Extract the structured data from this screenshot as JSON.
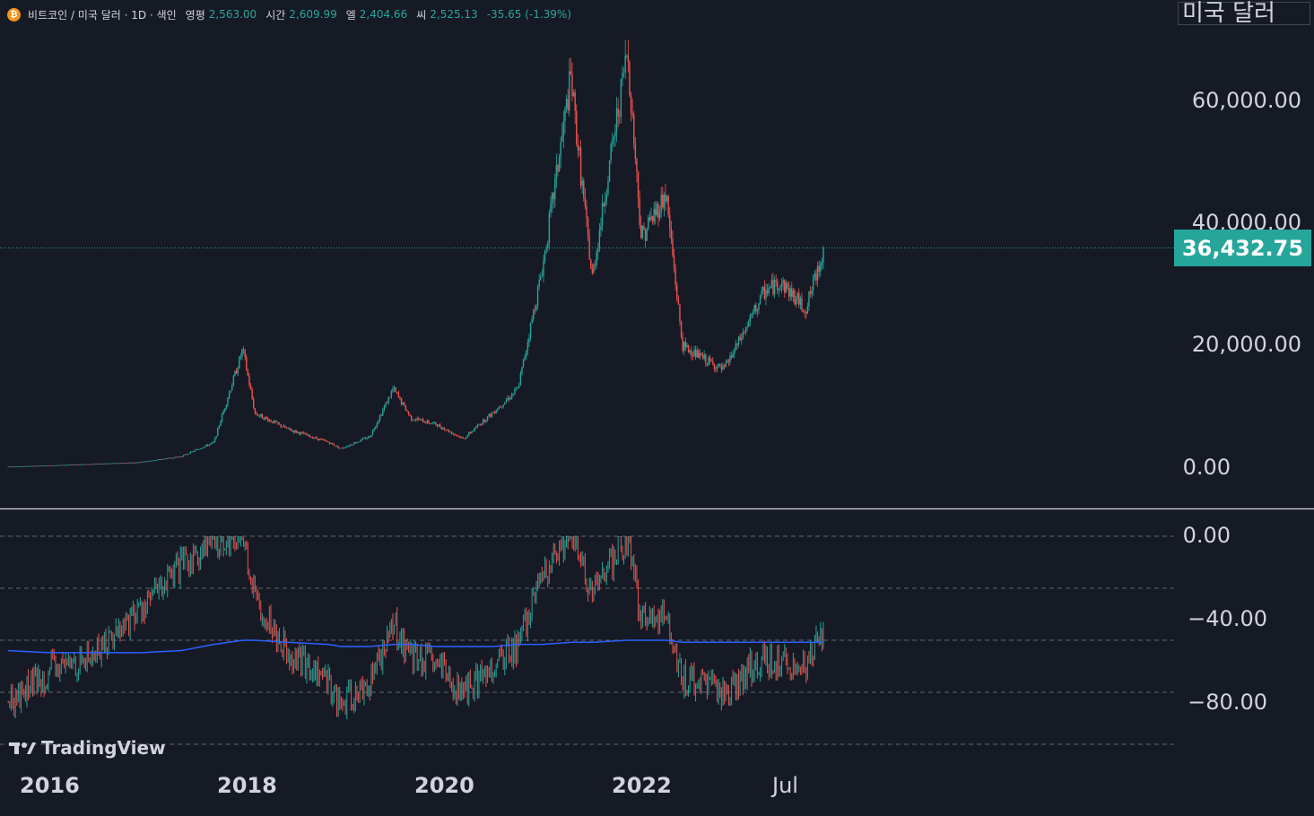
{
  "legend": {
    "symbol": "비트코인 / 미국 달러 · 1D · 색인",
    "open_label": "영평",
    "open": "2,563.00",
    "high_label": "시간",
    "high": "2,609.99",
    "low_label": "엘",
    "low": "2,404.66",
    "close_label": "씨",
    "close": "2,525.13",
    "change": "-35.65 (-1.39%)"
  },
  "currency_label": "미국 달러",
  "last_price": "36,432.75",
  "main_axis_labels": [
    "60,000.00",
    "40,000.00",
    "20,000.00",
    "0.00"
  ],
  "osc_axis_labels": [
    "0.00",
    "−40.00",
    "−80.00"
  ],
  "time_labels": [
    "2016",
    "2018",
    "2020",
    "2022",
    "Jul"
  ],
  "brand": "TradingView",
  "colors": {
    "background": "#161a25",
    "up": "#26a69a",
    "down": "#ef5350",
    "ma_line": "#2962ff",
    "grid": "#787b86",
    "text": "#d1d4dc"
  },
  "chart_data": [
    {
      "type": "candlestick",
      "title": "비트코인 / 미국 달러 · 1D",
      "ylabel": "미국 달러",
      "ylim": [
        0,
        69000
      ],
      "x": [
        "2015-08",
        "2016-01",
        "2016-06",
        "2016-12",
        "2017-05",
        "2017-09",
        "2017-12-17",
        "2018-02",
        "2018-06",
        "2018-11",
        "2018-12-15",
        "2019-04",
        "2019-06-26",
        "2019-09",
        "2019-12",
        "2020-03-12",
        "2020-07",
        "2020-10",
        "2021-01",
        "2021-04-14",
        "2021-07",
        "2021-11-10",
        "2022-01",
        "2022-04",
        "2022-06",
        "2022-11",
        "2023-01",
        "2023-04",
        "2023-06",
        "2023-09",
        "2023-11-10"
      ],
      "close": [
        230,
        430,
        650,
        950,
        1900,
        4200,
        19500,
        9000,
        6400,
        4200,
        3200,
        5200,
        13000,
        8200,
        7200,
        4800,
        9200,
        13000,
        33000,
        64000,
        31000,
        68500,
        38000,
        45000,
        20000,
        16000,
        21000,
        29000,
        30500,
        26000,
        36432.75
      ]
    },
    {
      "type": "line",
      "ylim": [
        -85,
        0
      ],
      "x": [
        "2015-08",
        "2016-01",
        "2016-06",
        "2016-12",
        "2017-05",
        "2017-09",
        "2017-12-17",
        "2018-02",
        "2018-06",
        "2018-11",
        "2018-12-15",
        "2019-04",
        "2019-06-26",
        "2019-09",
        "2019-12",
        "2020-03-12",
        "2020-07",
        "2020-10",
        "2021-01",
        "2021-04-14",
        "2021-07",
        "2021-11-10",
        "2022-01",
        "2022-04",
        "2022-06",
        "2022-11",
        "2023-01",
        "2023-04",
        "2023-06",
        "2023-09",
        "2023-11-10"
      ],
      "series": [
        {
          "values": [
            -80,
            -65,
            -58,
            -35,
            -15,
            -2,
            0,
            -30,
            -55,
            -70,
            -82,
            -70,
            -42,
            -58,
            -62,
            -76,
            -62,
            -52,
            -20,
            0,
            -28,
            0,
            -40,
            -38,
            -68,
            -75,
            -68,
            -58,
            -60,
            -63,
            -45
          ]
        },
        {
          "values": [
            -55,
            -56,
            -56,
            -56,
            -55,
            -52,
            -50,
            -50,
            -51,
            -52,
            -53,
            -53,
            -52,
            -52,
            -53,
            -53,
            -53,
            -52,
            -52,
            -51,
            -51,
            -50,
            -50,
            -50,
            -51,
            -51,
            -51,
            -51,
            -51,
            -51,
            -51
          ]
        }
      ],
      "grid_levels": [
        0,
        -25,
        -50,
        -75,
        -100
      ]
    }
  ]
}
